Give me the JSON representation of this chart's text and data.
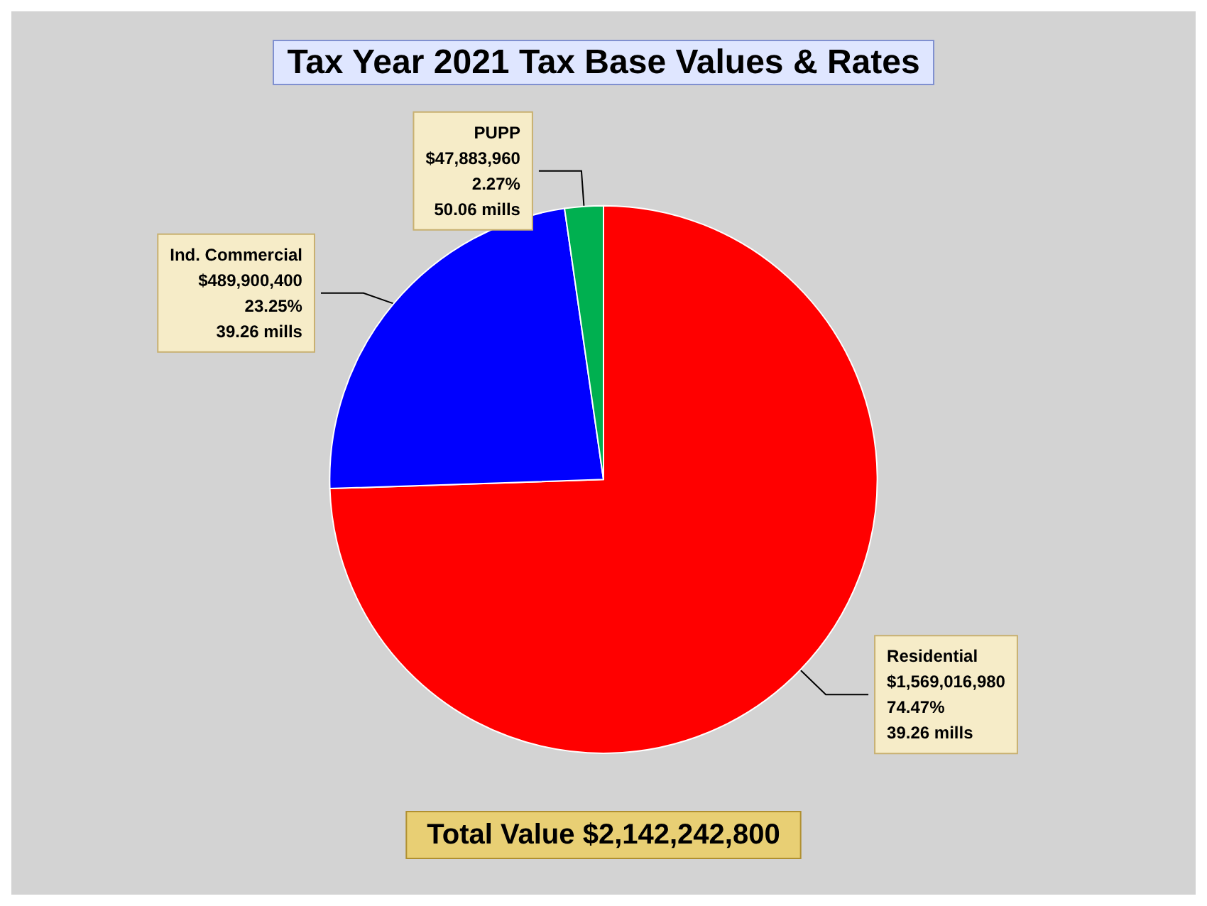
{
  "chart_data": {
    "type": "pie",
    "title": "Tax Year 2021 Tax Base Values & Rates",
    "categories": [
      "Residential",
      "Ind. Commercial",
      "PUPP"
    ],
    "values": [
      1569016980,
      489900400,
      47883960
    ],
    "colors": [
      "#ff0000",
      "#0000ff",
      "#00b050"
    ],
    "value_labels": [
      "$1,569,016,980\n74.47%\n39.26 mills",
      "$489,900,400\n23.25%\n39.26 mills",
      "$47,883,960\n2.27%\n50.06 mills"
    ],
    "annotations": [
      "Total Value $2,142,242,800"
    ],
    "legend": false
  }
}
